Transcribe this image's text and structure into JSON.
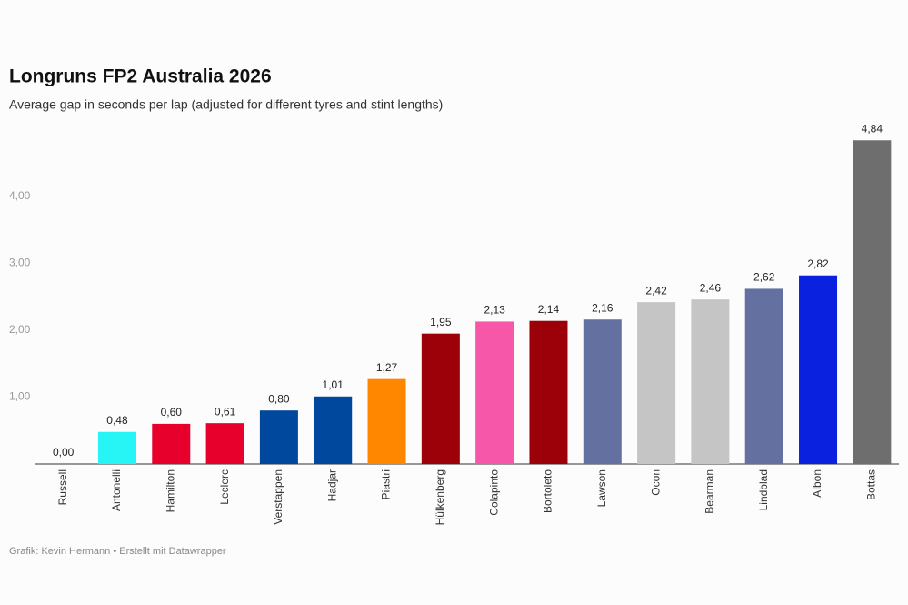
{
  "chart_data": {
    "type": "bar",
    "title": "Longruns FP2 Australia 2026",
    "subtitle": "Average gap in seconds per lap (adjusted for different tyres and stint lengths)",
    "source": "Grafik: Kevin Hermann • Erstellt mit Datawrapper",
    "categories": [
      "Russell",
      "Antonelli",
      "Hamilton",
      "Leclerc",
      "Verstappen",
      "Hadjar",
      "Piastri",
      "Hülkenberg",
      "Colapinto",
      "Bortoleto",
      "Lawson",
      "Ocon",
      "Bearman",
      "Lindblad",
      "Albon",
      "Bottas"
    ],
    "values": [
      0,
      0.48,
      0.6,
      0.61,
      0.8,
      1.01,
      1.27,
      1.95,
      2.13,
      2.14,
      2.16,
      2.42,
      2.46,
      2.62,
      2.82,
      4.84
    ],
    "value_labels": [
      "0,00",
      "0,48",
      "0,60",
      "0,61",
      "0,80",
      "1,01",
      "1,27",
      "1,95",
      "2,13",
      "2,14",
      "2,16",
      "2,42",
      "2,46",
      "2,62",
      "2,82",
      "4,84"
    ],
    "colors": [
      "#00d2be",
      "#27f4f4",
      "#e8002d",
      "#e8002d",
      "#00489d",
      "#00489d",
      "#ff8700",
      "#9c0008",
      "#f757a8",
      "#9c0008",
      "#6471a0",
      "#c5c5c5",
      "#c5c5c5",
      "#6471a0",
      "#0a21e0",
      "#6e6e6e"
    ],
    "ylim": [
      0,
      5
    ],
    "yticks": [
      {
        "value": 1,
        "label": "1,00"
      },
      {
        "value": 2,
        "label": "2,00"
      },
      {
        "value": 3,
        "label": "3,00"
      },
      {
        "value": 4,
        "label": "4,00"
      }
    ],
    "grid": false
  }
}
